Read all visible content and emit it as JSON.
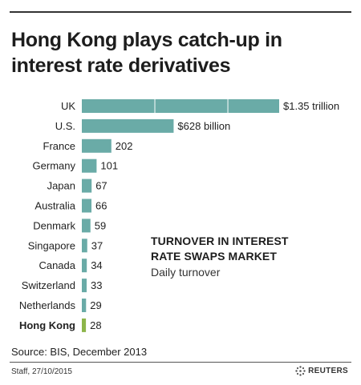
{
  "title": "Hong Kong plays catch-up in interest rate derivatives",
  "annotation": {
    "title_line1": "TURNOVER IN INTEREST",
    "title_line2": "RATE SWAPS MARKET",
    "subtitle": "Daily turnover"
  },
  "source": "Source: BIS, December 2013",
  "credit": "Staff, 27/10/2015",
  "logo_text": "REUTERS",
  "colors": {
    "bar": "#6aaba7",
    "highlight": "#8db54a",
    "label": "#222222"
  },
  "chart_data": {
    "type": "bar",
    "orientation": "horizontal",
    "categories": [
      "UK",
      "U.S.",
      "France",
      "Germany",
      "Japan",
      "Australia",
      "Denmark",
      "Singapore",
      "Canada",
      "Switzerland",
      "Netherlands",
      "Hong Kong"
    ],
    "values": [
      1350,
      628,
      202,
      101,
      67,
      66,
      59,
      37,
      34,
      33,
      29,
      28
    ],
    "value_labels": [
      "$1.35 trillion",
      "$628 billion",
      "202",
      "101",
      "67",
      "66",
      "59",
      "37",
      "34",
      "33",
      "29",
      "28"
    ],
    "highlight": "Hong Kong",
    "unit": "billion dollars",
    "xlim": [
      0,
      1350
    ],
    "grid": false
  }
}
